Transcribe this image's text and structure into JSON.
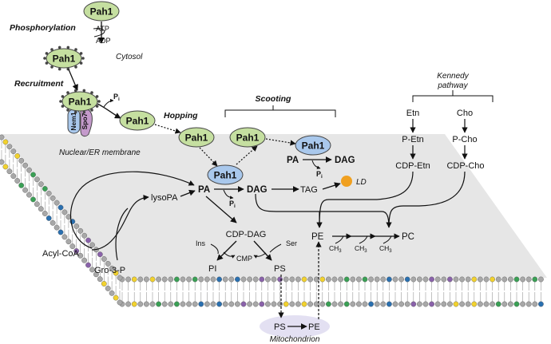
{
  "labels": {
    "pah1": "Pah1",
    "phosphorylation": "Phosphorylation",
    "atp": "ATP",
    "adp": "ADP",
    "cytosol": "Cytosol",
    "recruitment": "Recruitment",
    "pi": "P",
    "pi_sub": "i",
    "hopping": "Hopping",
    "scooting": "Scooting",
    "nem1": "Nem1",
    "spo7": "Spo7",
    "membrane": "Nuclear/ER membrane",
    "kennedy_line1": "Kennedy",
    "kennedy_line2": "pathway",
    "etn": "Etn",
    "cho": "Cho",
    "p_etn": "P-Etn",
    "p_cho": "P-Cho",
    "cdp_etn": "CDP-Etn",
    "cdp_cho": "CDP-Cho",
    "pa": "PA",
    "dag": "DAG",
    "tag": "TAG",
    "ld": "LD",
    "lysopa": "lysoPA",
    "acyl_coa": "Acyl-CoA",
    "gro3p": "Gro-3-P",
    "cdp_dag": "CDP-DAG",
    "ins": "Ins",
    "ser": "Ser",
    "cmp": "CMP",
    "pi_lipid": "PI",
    "ps": "PS",
    "pe": "PE",
    "pc": "PC",
    "ch3": "CH",
    "ch3_sub": "3",
    "mitochondrion": "Mitochondrion"
  },
  "colors": {
    "pah1_cytosol": "#c5dfa0",
    "pah1_membrane": "#a9c8ec",
    "nem1": "#a9c8ec",
    "spo7": "#c49acb",
    "membrane_plane": "#e6e6e6",
    "lipid_head": "#a8a8a8",
    "head_blue": "#2a70b0",
    "head_green": "#3aa055",
    "head_yellow": "#f2d22e",
    "head_purple": "#8a62aa",
    "ld": "#f0a020",
    "mitochondrion": "#e3e0f2"
  }
}
